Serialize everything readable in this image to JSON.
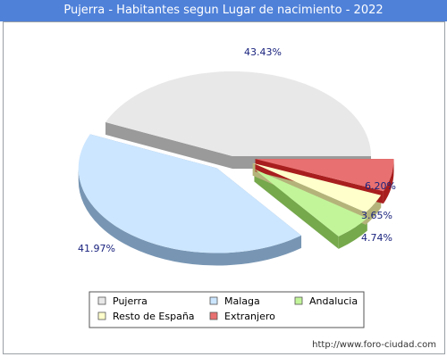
{
  "title": "Pujerra - Habitantes segun Lugar de nacimiento - 2022",
  "source_url": "http://www.foro-ciudad.com",
  "chart_data": {
    "type": "pie",
    "title": "Pujerra - Habitantes segun Lugar de nacimiento - 2022",
    "legend_placement": "bottom",
    "slices": [
      {
        "name": "Pujerra",
        "value": 43.43,
        "label": "43.43%",
        "color": "#e8e8e8",
        "side_color": "#9a9a9a"
      },
      {
        "name": "Malaga",
        "value": 41.97,
        "label": "41.97%",
        "color": "#cce6ff",
        "side_color": "#7896b4"
      },
      {
        "name": "Andalucia",
        "value": 4.74,
        "label": "4.74%",
        "color": "#c2f59a",
        "side_color": "#76a84c"
      },
      {
        "name": "Resto de España",
        "value": 3.65,
        "label": "3.65%",
        "color": "#ffffcc",
        "side_color": "#b4b47a"
      },
      {
        "name": "Extranjero",
        "value": 6.2,
        "label": "6.20%",
        "color": "#e87070",
        "side_color": "#a81e1e"
      }
    ]
  }
}
